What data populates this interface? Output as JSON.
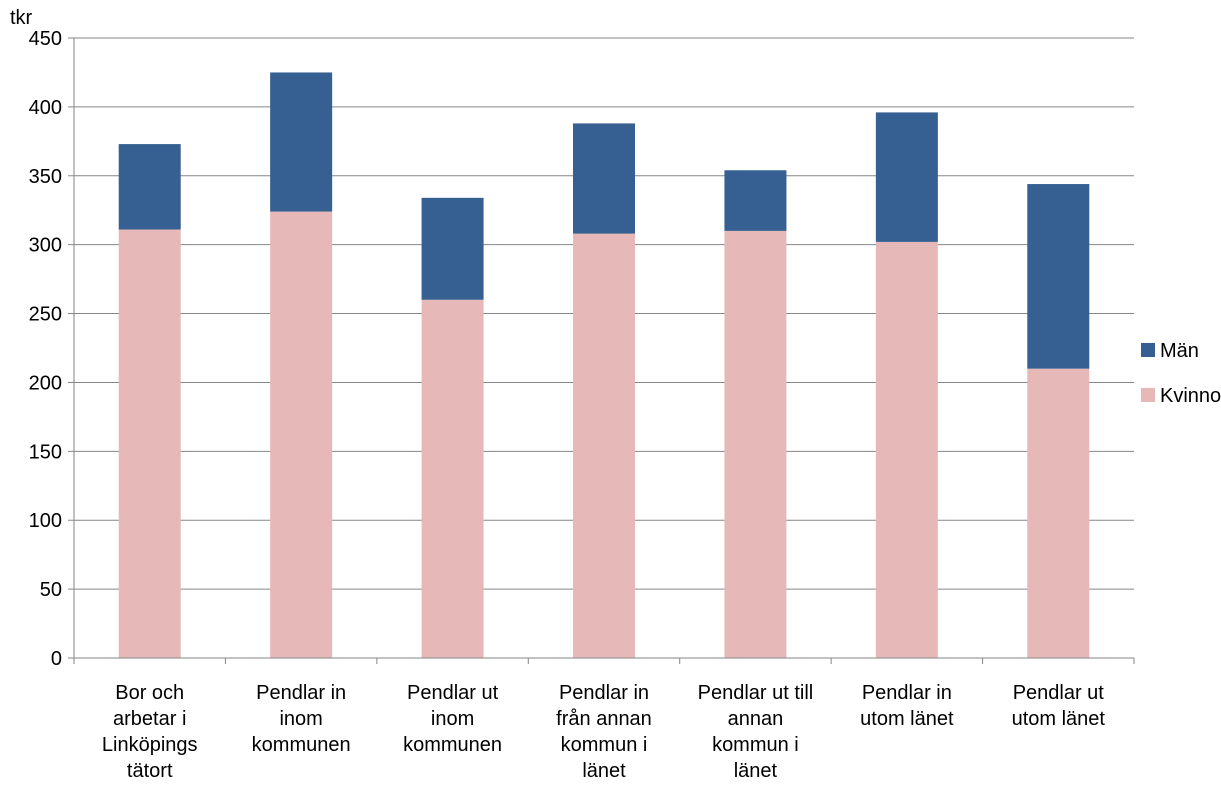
{
  "chart_data": {
    "type": "bar",
    "stacked": true,
    "ylabel": "tkr",
    "ylim": [
      0,
      450
    ],
    "yticks": [
      0,
      50,
      100,
      150,
      200,
      250,
      300,
      350,
      400,
      450
    ],
    "grid": true,
    "legend_position": "right",
    "categories": [
      [
        "Bor och",
        "arbetar i",
        "Linköpings",
        "tätort"
      ],
      [
        "Pendlar in",
        "inom",
        "kommunen"
      ],
      [
        "Pendlar ut",
        "inom",
        "kommunen"
      ],
      [
        "Pendlar in",
        "från annan",
        "kommun i",
        "länet"
      ],
      [
        "Pendlar ut till",
        "annan",
        "kommun i",
        "länet"
      ],
      [
        "Pendlar in",
        "utom länet"
      ],
      [
        "Pendlar ut",
        "utom länet"
      ]
    ],
    "series": [
      {
        "name": "Kvinnor",
        "color": "#e6b9b8",
        "values": [
          311,
          324,
          260,
          308,
          310,
          302,
          210
        ]
      },
      {
        "name": "Män",
        "color": "#376092",
        "values": [
          62,
          101,
          74,
          80,
          44,
          94,
          134
        ]
      }
    ],
    "legend_order": [
      "Män",
      "Kvinnor"
    ]
  }
}
